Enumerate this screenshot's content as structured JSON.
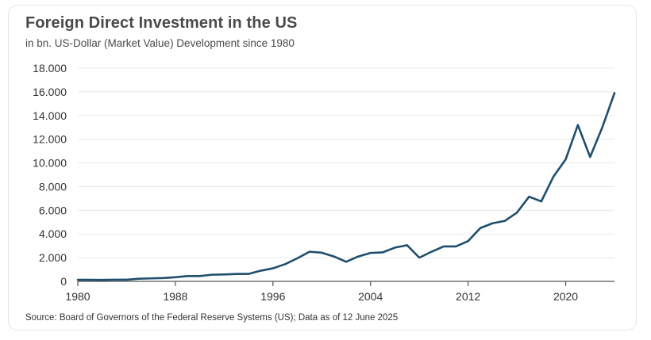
{
  "header": {
    "title": "Foreign Direct Investment in the US",
    "subtitle": "in bn. US-Dollar (Market Value) Development since 1980"
  },
  "footer": {
    "source": "Source: Board of Governors of the Federal Reserve Systems (US); Data as of 12 June 2025"
  },
  "colors": {
    "line": "#1f4e6e",
    "grid": "#e6e8ec",
    "axis": "#555555",
    "text": "#333333"
  },
  "chart_data": {
    "type": "line",
    "title": "Foreign Direct Investment in the US",
    "subtitle": "in bn. US-Dollar (Market Value) Development since 1980",
    "xlabel": "",
    "ylabel": "",
    "xlim": [
      1980,
      2024
    ],
    "ylim": [
      0,
      18000
    ],
    "grid": true,
    "y_ticks": [
      0,
      2000,
      4000,
      6000,
      8000,
      10000,
      12000,
      14000,
      16000,
      18000
    ],
    "y_tick_labels": [
      "0",
      "2.000",
      "4.000",
      "6.000",
      "8.000",
      "10.000",
      "12.000",
      "14.000",
      "16.000",
      "18.000"
    ],
    "x_ticks": [
      1980,
      1988,
      1996,
      2004,
      2012,
      2020
    ],
    "x_tick_labels": [
      "1980",
      "1988",
      "1996",
      "2004",
      "2012",
      "2020"
    ],
    "series": [
      {
        "x": [
          1980,
          1981,
          1982,
          1983,
          1984,
          1985,
          1986,
          1987,
          1988,
          1989,
          1990,
          1991,
          1992,
          1993,
          1994,
          1995,
          1996,
          1997,
          1998,
          1999,
          2000,
          2001,
          2002,
          2003,
          2004,
          2005,
          2006,
          2007,
          2008,
          2009,
          2010,
          2011,
          2012,
          2013,
          2014,
          2015,
          2016,
          2017,
          2018,
          2019,
          2020,
          2021,
          2022,
          2023,
          2024
        ],
        "values": [
          130,
          130,
          120,
          140,
          140,
          220,
          250,
          280,
          350,
          450,
          450,
          560,
          580,
          620,
          630,
          900,
          1100,
          1450,
          1950,
          2500,
          2420,
          2100,
          1650,
          2100,
          2400,
          2450,
          2850,
          3050,
          2000,
          2500,
          2950,
          2950,
          3400,
          4500,
          4900,
          5100,
          5800,
          7150,
          6750,
          8850,
          10300,
          13200,
          10500,
          13000,
          15900
        ]
      }
    ]
  }
}
